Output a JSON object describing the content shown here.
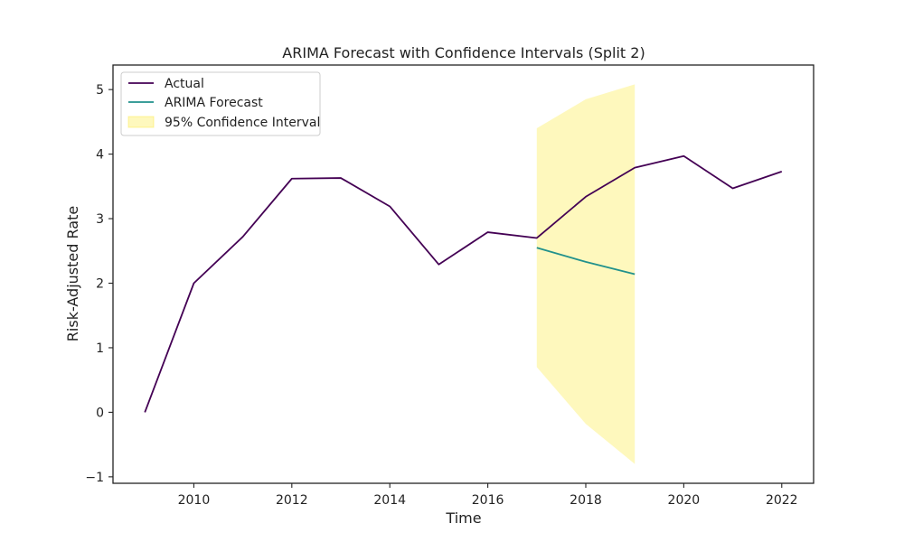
{
  "chart_data": {
    "type": "line",
    "title": "ARIMA Forecast with Confidence Intervals (Split 2)",
    "xlabel": "Time",
    "ylabel": "Risk-Adjusted Rate",
    "xlim": [
      2008.35,
      2022.65
    ],
    "ylim": [
      -1.1,
      5.38
    ],
    "xticks": [
      2010,
      2012,
      2014,
      2016,
      2018,
      2020,
      2022
    ],
    "yticks": [
      -1,
      0,
      1,
      2,
      3,
      4,
      5
    ],
    "ytick_labels": [
      "−1",
      "0",
      "1",
      "2",
      "3",
      "4",
      "5"
    ],
    "grid": false,
    "legend_position": "top-left",
    "series": [
      {
        "name": "Actual",
        "color": "#440154",
        "x": [
          2009,
          2010,
          2011,
          2012,
          2013,
          2014,
          2015,
          2016,
          2017,
          2018,
          2019,
          2020,
          2021,
          2022
        ],
        "values": [
          0.0,
          2.0,
          2.72,
          3.62,
          3.63,
          3.19,
          2.29,
          2.79,
          2.7,
          3.34,
          3.79,
          3.97,
          3.47,
          3.73
        ]
      },
      {
        "name": "ARIMA Forecast",
        "color": "#21918c",
        "x": [
          2017,
          2018,
          2019
        ],
        "values": [
          2.55,
          2.33,
          2.14
        ]
      }
    ],
    "interval": {
      "name": "95% Confidence Interval",
      "color": "#fde725",
      "opacity": 0.3,
      "x": [
        2017,
        2018,
        2019
      ],
      "lower": [
        0.7,
        -0.18,
        -0.8
      ],
      "upper": [
        4.4,
        4.85,
        5.08
      ]
    }
  }
}
